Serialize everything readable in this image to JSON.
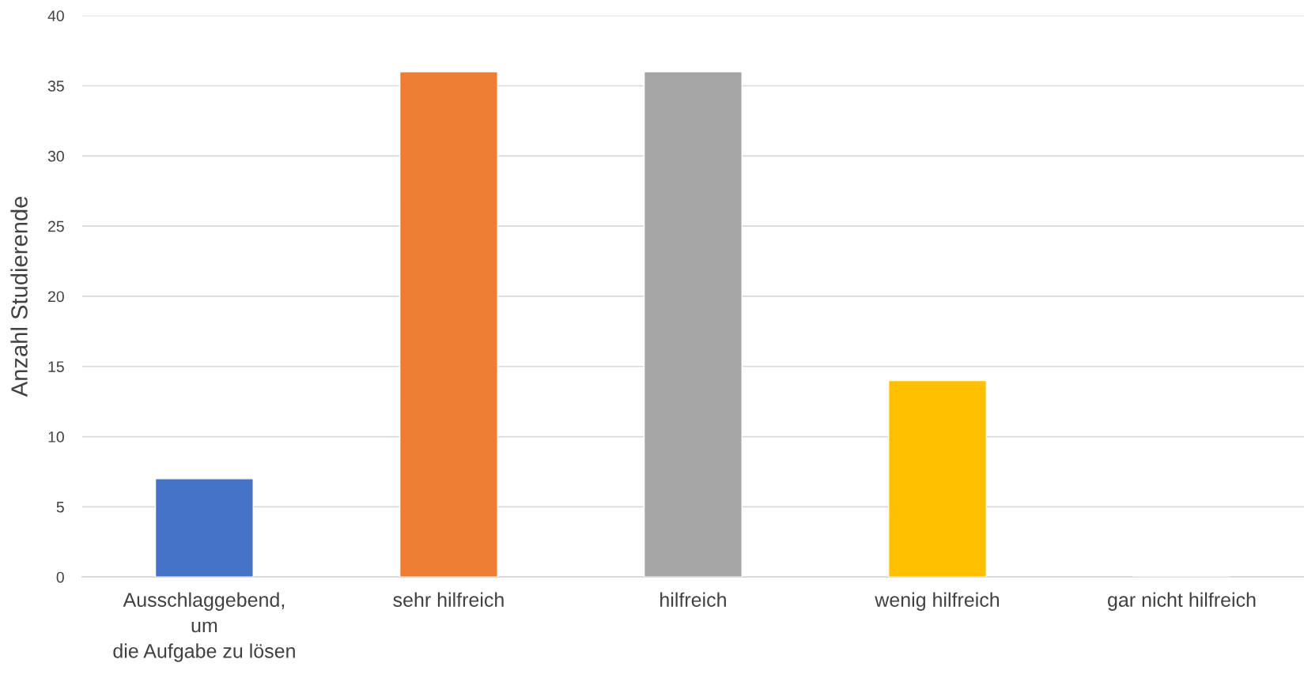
{
  "chart_data": {
    "type": "bar",
    "ylabel": "Anzahl Studierende",
    "categories": [
      "Ausschlaggebend,\num\ndie Aufgabe zu lösen",
      "sehr hilfreich",
      "hilfreich",
      "wenig hilfreich",
      "gar nicht hilfreich"
    ],
    "values": [
      7,
      36,
      36,
      14,
      0
    ],
    "colors": [
      "#4472c4",
      "#ed7d31",
      "#a5a5a5",
      "#ffc000",
      null
    ],
    "ylim": [
      0,
      40
    ],
    "yticks": [
      0,
      5,
      10,
      15,
      20,
      25,
      30,
      35,
      40
    ],
    "grid": "y",
    "legend": false
  }
}
